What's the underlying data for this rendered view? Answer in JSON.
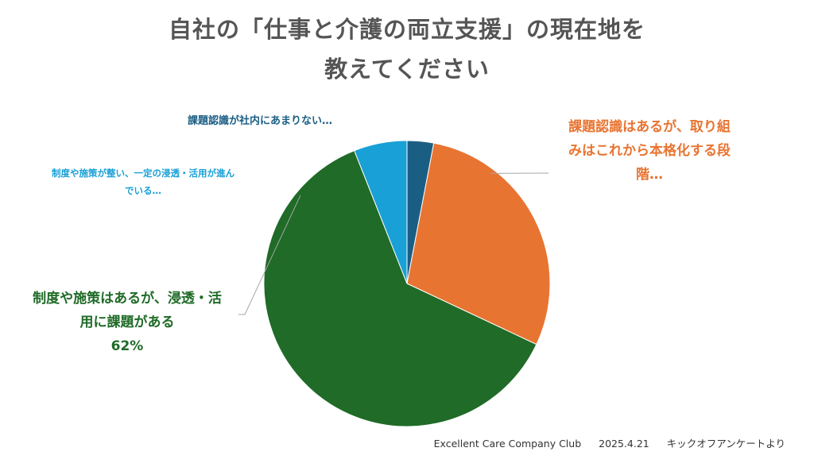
{
  "title": {
    "line1": "自社の「仕事と介護の両立支援」の現在地を",
    "line2": "教えてください"
  },
  "chart_data": {
    "type": "pie",
    "start_angle_deg": 0,
    "direction": "clockwise",
    "slices": [
      {
        "label_lines": [
          "課題認識が社内にあまりない…"
        ],
        "value": 3,
        "color": "#1b5e84",
        "label_color": "#1b5e84"
      },
      {
        "label_lines": [
          "課題認識はあるが、取り組",
          "みはこれから本格化する段",
          "階…"
        ],
        "value": 29,
        "color": "#e87431",
        "label_color": "#e87431"
      },
      {
        "label_lines": [
          "制度や施策はあるが、浸透・活",
          "用に課題がある",
          "62%"
        ],
        "value": 62,
        "color": "#1f6b27",
        "label_color": "#1f6b27"
      },
      {
        "label_lines": [
          "制度や施策が整い、一定の浸透・活用が進ん",
          "でいる…"
        ],
        "value": 6,
        "color": "#19a0d6",
        "label_color": "#19a0d6"
      }
    ]
  },
  "footer": {
    "org": "Excellent Care Company Club",
    "date": "2025.4.21",
    "source": "キックオフアンケートより"
  }
}
